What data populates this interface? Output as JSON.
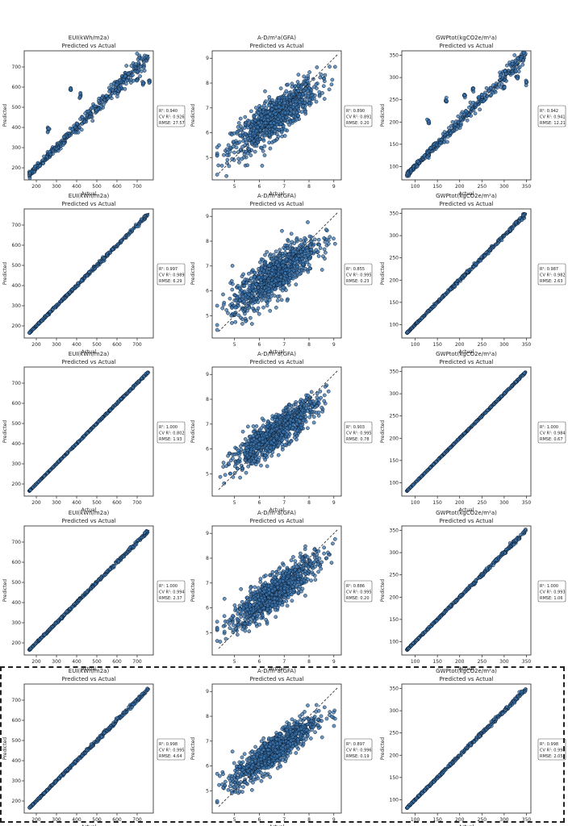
{
  "chart_data": [
    {
      "type": "scatter",
      "title": "EUI(kWh/m2a)",
      "subtitle": "Predicted vs Actual",
      "xlabel": "Actual",
      "ylabel": "Predicted",
      "xlim": [
        140,
        780
      ],
      "ylim": [
        140,
        780
      ],
      "xticks": [
        200,
        300,
        400,
        500,
        600,
        700
      ],
      "yticks": [
        200,
        300,
        400,
        500,
        600,
        700
      ],
      "stats": [
        "R²: 0.940",
        "CV R²: 0.926",
        "RMSE: 27.57"
      ],
      "marker_color": "#3b75af",
      "kind": "eui",
      "noise": 0.055,
      "outliers": true
    },
    {
      "type": "scatter",
      "title": "A-D/m²a(GFA)",
      "subtitle": "Predicted vs Actual",
      "xlabel": "Actual",
      "ylabel": "Predicted",
      "xlim": [
        4.1,
        9.3
      ],
      "ylim": [
        4.1,
        9.3
      ],
      "xticks": [
        5,
        6,
        7,
        8,
        9
      ],
      "yticks": [
        4,
        5,
        6,
        7,
        8,
        9
      ],
      "stats": [
        "R²: 0.890",
        "CV R²: 0.891",
        "RMSE: 0.20"
      ],
      "marker_color": "#3b75af",
      "kind": "ad",
      "noise": 0.5,
      "outliers": false
    },
    {
      "type": "scatter",
      "title": "GWPtot(kgCO2e/m²a)",
      "subtitle": "Predicted vs Actual",
      "xlabel": "Actual",
      "ylabel": "Predicted",
      "xlim": [
        70,
        360
      ],
      "ylim": [
        70,
        360
      ],
      "xticks": [
        100,
        150,
        200,
        250,
        300,
        350
      ],
      "yticks": [
        100,
        150,
        200,
        250,
        300,
        350
      ],
      "stats": [
        "R²: 0.942",
        "CV R²: 0.941",
        "RMSE: 12.21"
      ],
      "marker_color": "#3b75af",
      "kind": "gwp",
      "noise": 0.055,
      "outliers": true
    },
    {
      "type": "scatter",
      "title": "EUI(kWh/m2a)",
      "subtitle": "Predicted vs Actual",
      "xlabel": "Actual",
      "ylabel": "Predicted",
      "xlim": [
        140,
        780
      ],
      "ylim": [
        140,
        780
      ],
      "xticks": [
        200,
        300,
        400,
        500,
        600,
        700
      ],
      "yticks": [
        200,
        300,
        400,
        500,
        600,
        700
      ],
      "stats": [
        "R²: 0.997",
        "CV R²: 0.989",
        "RMSE: 6.29"
      ],
      "marker_color": "#3b75af",
      "kind": "eui",
      "noise": 0.012,
      "outliers": false
    },
    {
      "type": "scatter",
      "title": "A-D/m²a(GFA)",
      "subtitle": "Predicted vs Actual",
      "xlabel": "Actual",
      "ylabel": "Predicted",
      "xlim": [
        4.1,
        9.3
      ],
      "ylim": [
        4.1,
        9.3
      ],
      "xticks": [
        5,
        6,
        7,
        8,
        9
      ],
      "yticks": [
        4,
        5,
        6,
        7,
        8,
        9
      ],
      "stats": [
        "R²: 0.855",
        "CV R²: 0.995",
        "RMSE: 0.23"
      ],
      "marker_color": "#3b75af",
      "kind": "ad",
      "noise": 0.55,
      "outliers": false
    },
    {
      "type": "scatter",
      "title": "GWPtot(kgCO2e/m²a)",
      "subtitle": "Predicted vs Actual",
      "xlabel": "Actual",
      "ylabel": "Predicted",
      "xlim": [
        70,
        360
      ],
      "ylim": [
        70,
        360
      ],
      "xticks": [
        100,
        150,
        200,
        250,
        300,
        350
      ],
      "yticks": [
        100,
        150,
        200,
        250,
        300,
        350
      ],
      "stats": [
        "R²: 0.987",
        "CV R²: 0.982",
        "RMSE: 2.63"
      ],
      "marker_color": "#3b75af",
      "kind": "gwp",
      "noise": 0.012,
      "outliers": false
    },
    {
      "type": "scatter",
      "title": "EUI(kWh/m2a)",
      "subtitle": "Predicted vs Actual",
      "xlabel": "Actual",
      "ylabel": "Predicted",
      "xlim": [
        140,
        780
      ],
      "ylim": [
        140,
        780
      ],
      "xticks": [
        200,
        300,
        400,
        500,
        600,
        700
      ],
      "yticks": [
        200,
        300,
        400,
        500,
        600,
        700
      ],
      "stats": [
        "R²: 1.000",
        "CV R²: 0.802",
        "RMSE: 1.93"
      ],
      "marker_color": "#3b75af",
      "kind": "eui",
      "noise": 0.004,
      "outliers": false
    },
    {
      "type": "scatter",
      "title": "A-D/m²a(GFA)",
      "subtitle": "Predicted vs Actual",
      "xlabel": "Actual",
      "ylabel": "Predicted",
      "xlim": [
        4.1,
        9.3
      ],
      "ylim": [
        4.1,
        9.3
      ],
      "xticks": [
        5,
        6,
        7,
        8,
        9
      ],
      "yticks": [
        4,
        5,
        6,
        7,
        8,
        9
      ],
      "stats": [
        "R²: 0.903",
        "CV R²: 0.995",
        "RMSE: 0.78"
      ],
      "marker_color": "#3b75af",
      "kind": "ad",
      "noise": 0.42,
      "outliers": false
    },
    {
      "type": "scatter",
      "title": "GWPtot(kgCO2e/m²a)",
      "subtitle": "Predicted vs Actual",
      "xlabel": "Actual",
      "ylabel": "Predicted",
      "xlim": [
        70,
        360
      ],
      "ylim": [
        70,
        360
      ],
      "xticks": [
        100,
        150,
        200,
        250,
        300,
        350
      ],
      "yticks": [
        100,
        150,
        200,
        250,
        300,
        350
      ],
      "stats": [
        "R²: 1.000",
        "CV R²: 0.984",
        "RMSE: 0.67"
      ],
      "marker_color": "#3b75af",
      "kind": "gwp",
      "noise": 0.004,
      "outliers": false
    },
    {
      "type": "scatter",
      "title": "EUI(kWh/m2a)",
      "subtitle": "Predicted vs Actual",
      "xlabel": "Actual",
      "ylabel": "Predicted",
      "xlim": [
        140,
        780
      ],
      "ylim": [
        140,
        780
      ],
      "xticks": [
        200,
        300,
        400,
        500,
        600,
        700
      ],
      "yticks": [
        200,
        300,
        400,
        500,
        600,
        700
      ],
      "stats": [
        "R²: 1.000",
        "CV R²: 0.994",
        "RMSE: 2.37"
      ],
      "marker_color": "#3b75af",
      "kind": "eui",
      "noise": 0.01,
      "outliers": false
    },
    {
      "type": "scatter",
      "title": "A-D/m²a(GFA)",
      "subtitle": "Predicted vs Actual",
      "xlabel": "Actual",
      "ylabel": "Predicted",
      "xlim": [
        4.1,
        9.3
      ],
      "ylim": [
        4.1,
        9.3
      ],
      "xticks": [
        5,
        6,
        7,
        8,
        9
      ],
      "yticks": [
        4,
        5,
        6,
        7,
        8,
        9
      ],
      "stats": [
        "R²: 0.886",
        "CV R²: 0.995",
        "RMSE: 0.20"
      ],
      "marker_color": "#3b75af",
      "kind": "ad",
      "noise": 0.45,
      "outliers": false
    },
    {
      "type": "scatter",
      "title": "GWPtot(kgCO2e/m²a)",
      "subtitle": "Predicted vs Actual",
      "xlabel": "Actual",
      "ylabel": "Predicted",
      "xlim": [
        70,
        360
      ],
      "ylim": [
        70,
        360
      ],
      "xticks": [
        100,
        150,
        200,
        250,
        300,
        350
      ],
      "yticks": [
        100,
        150,
        200,
        250,
        300,
        350
      ],
      "stats": [
        "R²: 1.000",
        "CV R²: 0.993",
        "RMSE: 1.06"
      ],
      "marker_color": "#3b75af",
      "kind": "gwp",
      "noise": 0.01,
      "outliers": false
    },
    {
      "type": "scatter",
      "title": "EUI(kWh/m2a)",
      "subtitle": "Predicted vs Actual",
      "xlabel": "Actual",
      "ylabel": "Predicted",
      "xlim": [
        140,
        780
      ],
      "ylim": [
        140,
        780
      ],
      "xticks": [
        200,
        300,
        400,
        500,
        600,
        700
      ],
      "yticks": [
        200,
        300,
        400,
        500,
        600,
        700
      ],
      "stats": [
        "R²: 0.998",
        "CV R²: 0.995",
        "RMSE: 4.64"
      ],
      "marker_color": "#3b75af",
      "kind": "eui",
      "noise": 0.012,
      "outliers": false
    },
    {
      "type": "scatter",
      "title": "A-D/m²a(GFA)",
      "subtitle": "Predicted vs Actual",
      "xlabel": "Actual",
      "ylabel": "Predicted",
      "xlim": [
        4.1,
        9.3
      ],
      "ylim": [
        4.1,
        9.3
      ],
      "xticks": [
        5,
        6,
        7,
        8,
        9
      ],
      "yticks": [
        4,
        5,
        6,
        7,
        8,
        9
      ],
      "stats": [
        "R²: 0.897",
        "CV R²: 0.996",
        "RMSE: 0.19"
      ],
      "marker_color": "#3b75af",
      "kind": "ad",
      "noise": 0.4,
      "outliers": false
    },
    {
      "type": "scatter",
      "title": "GWPtot(kgCO2e/m²a)",
      "subtitle": "Predicted vs Actual",
      "xlabel": "Actual",
      "ylabel": "Predicted",
      "xlim": [
        70,
        360
      ],
      "ylim": [
        70,
        360
      ],
      "xticks": [
        100,
        150,
        200,
        250,
        300,
        350
      ],
      "yticks": [
        100,
        150,
        200,
        250,
        300,
        350
      ],
      "stats": [
        "R²: 0.998",
        "CV R²: 0.998",
        "RMSE: 2.05"
      ],
      "marker_color": "#3b75af",
      "kind": "gwp",
      "noise": 0.012,
      "outliers": false
    }
  ]
}
